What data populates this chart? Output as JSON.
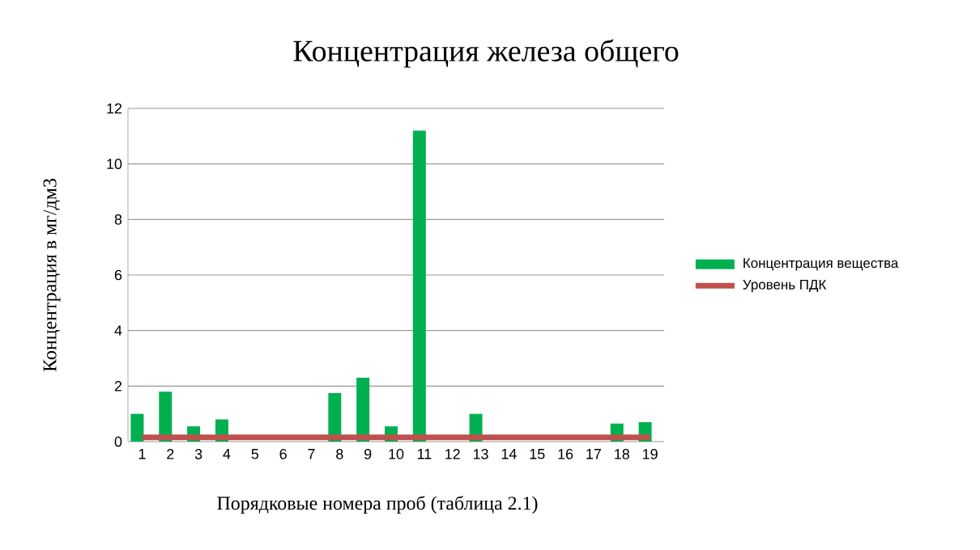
{
  "chart_data": {
    "type": "bar",
    "title": "Концентрация железа общего",
    "xlabel": "Порядковые номера проб (таблица 2.1)",
    "ylabel": "Концентрация в мг/дм3",
    "categories": [
      "1",
      "2",
      "3",
      "4",
      "5",
      "6",
      "7",
      "8",
      "9",
      "10",
      "11",
      "12",
      "13",
      "14",
      "15",
      "16",
      "17",
      "18",
      "19"
    ],
    "series": [
      {
        "name": "Концентрация вещества",
        "color": "#00b050",
        "values": [
          1.0,
          1.8,
          0.55,
          0.8,
          null,
          null,
          null,
          1.75,
          2.3,
          0.55,
          11.2,
          null,
          1.0,
          null,
          null,
          null,
          null,
          0.65,
          0.7
        ]
      },
      {
        "name": "Уровень ПДК",
        "type": "line",
        "color": "#c0504d",
        "values": [
          0.15,
          0.15,
          0.15,
          0.15,
          0.15,
          0.15,
          0.15,
          0.15,
          0.15,
          0.15,
          0.15,
          0.15,
          0.15,
          0.15,
          0.15,
          0.15,
          0.15,
          0.15,
          0.15
        ]
      }
    ],
    "ylim": [
      0,
      12
    ],
    "yticks": [
      0,
      2,
      4,
      6,
      8,
      10,
      12
    ],
    "grid": "y",
    "legend": "right"
  }
}
